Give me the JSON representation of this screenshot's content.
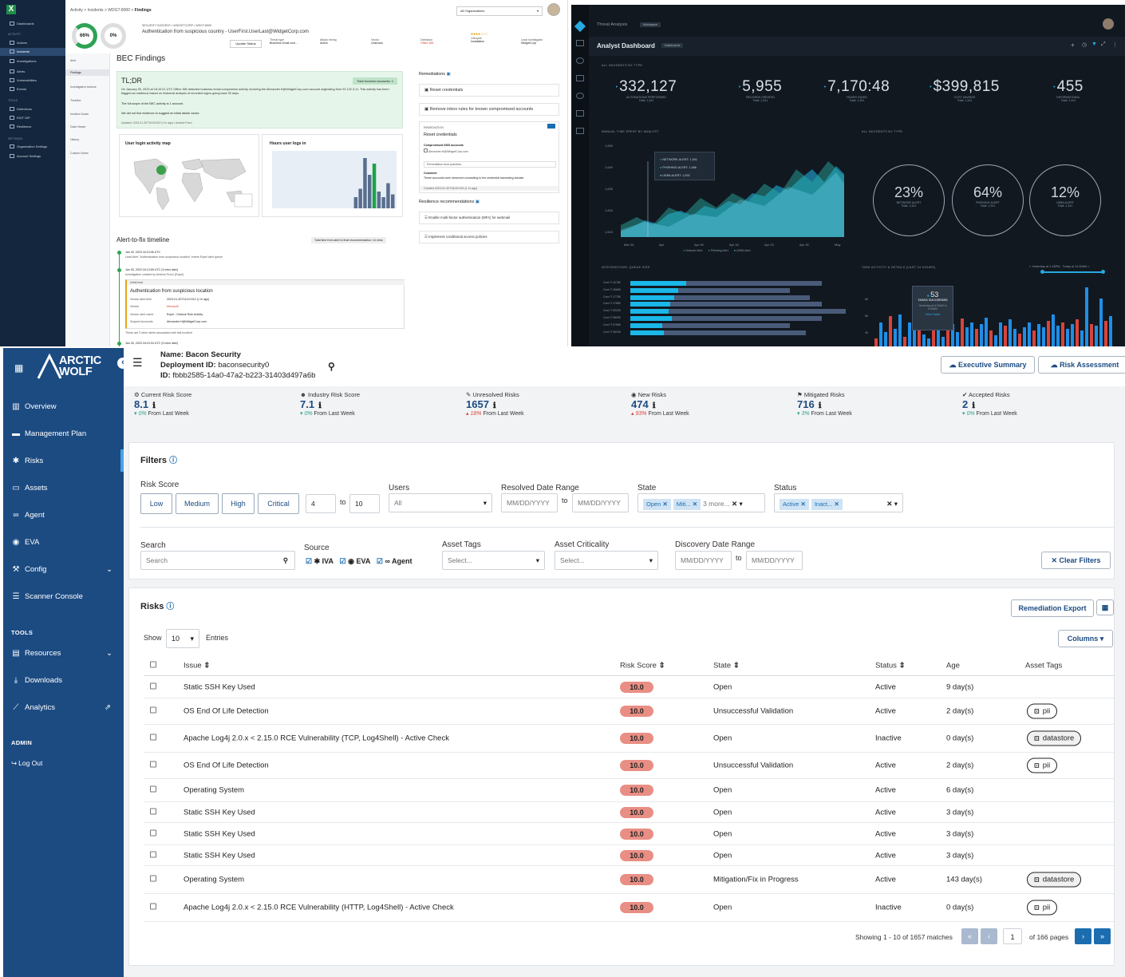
{
  "panel_a": {
    "nav": {
      "items": [
        "Dashboards",
        "Actions",
        "Incidents",
        "Investigations",
        "Alerts",
        "Vulnerabilities",
        "Events",
        "Detections",
        "EDIT DIP",
        "Resilience",
        "Organization Settings",
        "Account Settings"
      ],
      "sections": [
        "ACTIVITY",
        "TOOLS",
        "SETTINGS"
      ]
    },
    "breadcrumb": {
      "a": "Activity",
      "b": "Incidents",
      "c": "WDGT-8900",
      "d": "Findings"
    },
    "org_select": "All Organizations",
    "rings": {
      "r1": "66%",
      "r2": "0%"
    },
    "incident": {
      "meta": "SECURITY INCIDENT • WIDGETCORP • WDGT-8900",
      "title": "Authentication from suspicious country - UserFirst.UserLast@WidgetCorp.com",
      "update_btn": "Update Status",
      "threat_type_l": "Threat type",
      "threat_type_v": "Business email com...",
      "attack_l": "Attack timing",
      "attack_v": "Active",
      "vector_l": "Vector",
      "vector_v": "Unknown",
      "detection_l": "Detection",
      "detection_v": "Office 365",
      "lifecycle_l": "Lifecycle",
      "lifecycle_v": "Installation",
      "lead_l": "Lead investigator",
      "lead_v": "WidgetCorp"
    },
    "tabs": [
      "Alert",
      "Findings",
      "Investigative Actions",
      "Timeline",
      "Incident Goals",
      "Data Viewer",
      "History",
      "Custom Notes"
    ],
    "findings_title": "BEC Findings",
    "tldr": {
      "heading": "TL;DR",
      "badge": "Total involved accounts: 1",
      "p1": "On January 30, 2023 at 16:10:01 UTC Office 365 detected business email compromise activity involving the Alexander.H@WidgetCorp.com account originating from 92.122.3.11. This activity has been flagged as malicious based on historical analysis of recorded logins going back 30 days.",
      "p2": "The full scope of the BEC activity is 1 account.",
      "p3": "We did not find evidence to suggest an initial attack vector.",
      "updated": "Updated: 2023-01-30T18:00:00Z (1 hr ago) • Andrew Pucci"
    },
    "map_title": "User login activity map",
    "hours_title": "Hours user logs in",
    "hours_bars": [
      0,
      0,
      0,
      0,
      0,
      0,
      0,
      0,
      0,
      0,
      0,
      0,
      0,
      0,
      0,
      0,
      0,
      20,
      35,
      90,
      60,
      80,
      30,
      20,
      45,
      25
    ],
    "timeline": {
      "title": "Alert-to-fix timeline",
      "total": "Total time from alert to final recommendation: 14 mins",
      "e1_time": "Jan 30, 2023 16:10:06 UTC",
      "e1_desc": "Lead Alert \"Authentication from suspicious location\" enters Expel alert queue",
      "e2_time": "Jan 30, 2023 16:13:59 UTC (3 mins later)",
      "e2_desc": "Investigation created by Andrew Pucci (Expel)",
      "box_head": "Initial lead",
      "box_title": "Authentication from suspicious location",
      "f1_l": "Vendor alert time",
      "f1_v": "2023-01-30T16:10:01Z (1 hr ago)",
      "f2_l": "Vendor",
      "f2_v": "Microsoft",
      "f3_l": "Vendor alert name",
      "f3_v": "Expel - Outlook Rule Activity",
      "f4_l": "Suspect Accounts",
      "f4_v": "Alexander.H@WidgetCorp.com",
      "more": "These are 3 other alerts associated with this incident",
      "e3_time": "Jan 30, 2023 16:19:34 UTC (9 mins later)"
    },
    "remediations": {
      "title": "Remediations",
      "r1": "Reset credentials",
      "r2": "Remove inbox rules for known compromised accounts",
      "card_tag": "REMEDIATION",
      "card_title": "Reset credentials",
      "card_sub": "Compromised 0365 accounts",
      "card_acct": "Alexander.H@WidgetCorp.com",
      "card_sel": "Remediation best practices",
      "card_comment_l": "Comment",
      "card_comment": "These accounts were observed connecting to the credential harvesting domain.",
      "card_foot": "Created 2023-01-30T18:09:19Z (1 hr ago)",
      "res_title": "Resilience recommendations",
      "res1": "Enable multi-factor authentication (MFA) for webmail",
      "res2": "Implement conditional access policies"
    }
  },
  "panel_b": {
    "top_title": "Threat Analysis",
    "top_pill": "Workspace",
    "title": "Analyst Dashboard",
    "title_pill": "Dashboards",
    "sec1": "ALL INCIDENTS BY TYPE",
    "kpis": [
      {
        "v": "332,127",
        "l": "AUTOMATIONS PERFORMED",
        "s": "Total: 1,341"
      },
      {
        "v": "5,955",
        "l": "RECORDS CREATED",
        "s": "Total: 1,341"
      },
      {
        "v": "7,170:48",
        "l": "HOURS SAVED",
        "s": "Total: 1,341"
      },
      {
        "v": "$399,815",
        "l": "COST SAVINGS",
        "s": "Total: 1,341"
      },
      {
        "v": "455",
        "l": "INFORMATIONAL",
        "s": "Total: 1,341"
      }
    ],
    "sec2": "MANUAL TIME SPENT BY ANALYST",
    "sec3": "ALL INCIDENTS BY TYPE",
    "area_y": [
      "1,650",
      "1,640",
      "1,630",
      "1,620",
      "1,610"
    ],
    "area_x": [
      "Mar 26",
      "Apr",
      "Apr 09",
      "Apr 16",
      "Apr 23",
      "Apr 30",
      "May"
    ],
    "tooltip": [
      "NETWORK ALERT: 1,641",
      "PHISHING ALERT: 1,666",
      "UEBA ALERT: 1,592"
    ],
    "legend": [
      "Network Alert",
      "Phishing Alert",
      "UEBA Alert"
    ],
    "rings": [
      {
        "v": "23%",
        "l": "NETWORK ALERT",
        "s": "Total: 1,341"
      },
      {
        "v": "64%",
        "l": "PHISHING ALERT",
        "s": "Total: 1,341"
      },
      {
        "v": "12%",
        "l": "UEBA ALERT",
        "s": "Total: 1,341"
      }
    ],
    "sec4": "INTEGRATIONS: QUEUE SIZE",
    "queue_labels": [
      "Core IT 4078K",
      "Core IT 4668K",
      "Core IT 4778K",
      "Core IT 4788K",
      "Core IT 5020K",
      "Core IT 5800K",
      "Core IT 5768K",
      "Core IT 5820K"
    ],
    "sec5": "TASK ACTIVITY & DETAILS (LAST 24 HOURS)",
    "range": "Yesterday at 1:45PM - Today at 12:00AM",
    "task_tip": {
      "v": "53",
      "l": "TASKS SUCCEEDED",
      "s": "Yesterday at 6:00AM to 6:30AM",
      "link": "View Tasks"
    },
    "task_y": [
      "80",
      "60",
      "40",
      "20"
    ]
  },
  "panel_c": {
    "brand": "ARCTIC WOLF",
    "nav": [
      {
        "label": "Overview",
        "icon": "bar-chart-icon"
      },
      {
        "label": "Management Plan",
        "icon": "briefcase-icon"
      },
      {
        "label": "Risks",
        "icon": "bug-icon"
      },
      {
        "label": "Assets",
        "icon": "drive-icon"
      },
      {
        "label": "Agent",
        "icon": "binoculars-icon"
      },
      {
        "label": "EVA",
        "icon": "globe-icon"
      },
      {
        "label": "Config",
        "icon": "wrench-icon"
      },
      {
        "label": "Scanner Console",
        "icon": "list-icon"
      }
    ],
    "tools_label": "TOOLS",
    "tools": [
      {
        "label": "Resources",
        "icon": "book-icon"
      },
      {
        "label": "Downloads",
        "icon": "download-icon"
      },
      {
        "label": "Analytics",
        "icon": "line-chart-icon"
      }
    ],
    "admin_label": "ADMIN",
    "logout": "Log Out",
    "header": {
      "name_l": "Name:",
      "name_v": "Bacon Security",
      "dep_l": "Deployment ID:",
      "dep_v": "baconsecurity0",
      "id_l": "ID:",
      "id_v": "fbbb2585-14a0-47a2-b223-31403d497a6b",
      "btn1": "Executive Summary",
      "btn2": "Risk Assessment"
    },
    "stats": [
      {
        "label": "Current Risk Score",
        "value": "8.1",
        "delta": "0%",
        "dir": "down",
        "suffix": "From Last Week"
      },
      {
        "label": "Industry Risk Score",
        "value": "7.1",
        "delta": "0%",
        "dir": "down",
        "suffix": "From Last Week"
      },
      {
        "label": "Unresolved Risks",
        "value": "1657",
        "delta": "18%",
        "dir": "up",
        "suffix": "From Last Week"
      },
      {
        "label": "New Risks",
        "value": "474",
        "delta": "93%",
        "dir": "up",
        "suffix": "From Last Week"
      },
      {
        "label": "Mitigated Risks",
        "value": "716",
        "delta": "3%",
        "dir": "down",
        "suffix": "From Last Week"
      },
      {
        "label": "Accepted Risks",
        "value": "2",
        "delta": "0%",
        "dir": "down",
        "suffix": "From Last Week"
      }
    ],
    "filters": {
      "title": "Filters",
      "risk_score": "Risk Score",
      "levels": [
        "Low",
        "Medium",
        "High",
        "Critical"
      ],
      "from": "4",
      "to_label": "to",
      "to": "10",
      "users": "Users",
      "users_v": "All",
      "resolved": "Resolved Date Range",
      "date_ph": "MM/DD/YYYY",
      "state": "State",
      "state_chips": [
        "Open",
        "Miti..."
      ],
      "state_more": "3 more...",
      "status": "Status",
      "status_chips": [
        "Active",
        "Inact..."
      ],
      "search": "Search",
      "search_ph": "Search",
      "source": "Source",
      "sources": [
        "IVA",
        "EVA",
        "Agent"
      ],
      "asset_tags": "Asset Tags",
      "select_ph": "Select...",
      "asset_crit": "Asset Criticality",
      "discovery": "Discovery Date Range",
      "clear": "Clear Filters"
    },
    "risks": {
      "title": "Risks",
      "export": "Remediation Export",
      "show": "Show",
      "show_v": "10",
      "entries": "Entries",
      "columns": "Columns",
      "headers": [
        "Issue",
        "Risk Score",
        "State",
        "Status",
        "Age",
        "Asset Tags"
      ],
      "rows": [
        {
          "issue": "Static SSH Key Used",
          "score": "10.0",
          "state": "Open",
          "status": "Active",
          "age": "9 day(s)",
          "tag": ""
        },
        {
          "issue": "OS End Of Life Detection",
          "score": "10.0",
          "state": "Unsuccessful Validation",
          "status": "Active",
          "age": "2 day(s)",
          "tag": "pii"
        },
        {
          "issue": "Apache Log4j 2.0.x < 2.15.0 RCE Vulnerability (TCP, Log4Shell) - Active Check",
          "score": "10.0",
          "state": "Open",
          "status": "Inactive",
          "age": "0 day(s)",
          "tag": "datastore"
        },
        {
          "issue": "OS End Of Life Detection",
          "score": "10.0",
          "state": "Unsuccessful Validation",
          "status": "Active",
          "age": "2 day(s)",
          "tag": "pii"
        },
        {
          "issue": "Operating System",
          "score": "10.0",
          "state": "Open",
          "status": "Active",
          "age": "6 day(s)",
          "tag": ""
        },
        {
          "issue": "Static SSH Key Used",
          "score": "10.0",
          "state": "Open",
          "status": "Active",
          "age": "3 day(s)",
          "tag": ""
        },
        {
          "issue": "Static SSH Key Used",
          "score": "10.0",
          "state": "Open",
          "status": "Active",
          "age": "3 day(s)",
          "tag": ""
        },
        {
          "issue": "Static SSH Key Used",
          "score": "10.0",
          "state": "Open",
          "status": "Active",
          "age": "3 day(s)",
          "tag": ""
        },
        {
          "issue": "Operating System",
          "score": "10.0",
          "state": "Mitigation/Fix in Progress",
          "status": "Active",
          "age": "143 day(s)",
          "tag": "datastore"
        },
        {
          "issue": "Apache Log4j 2.0.x < 2.15.0 RCE Vulnerability (HTTP, Log4Shell) - Active Check",
          "score": "10.0",
          "state": "Open",
          "status": "Inactive",
          "age": "0 day(s)",
          "tag": "pii"
        }
      ],
      "showing": "Showing 1 - 10 of 1657 matches",
      "page": "1",
      "of_pages": "of 166 pages"
    },
    "colors": {
      "brand": "#1c4b82",
      "badge": "#e98e84",
      "chip": "#cfe3f5"
    }
  }
}
